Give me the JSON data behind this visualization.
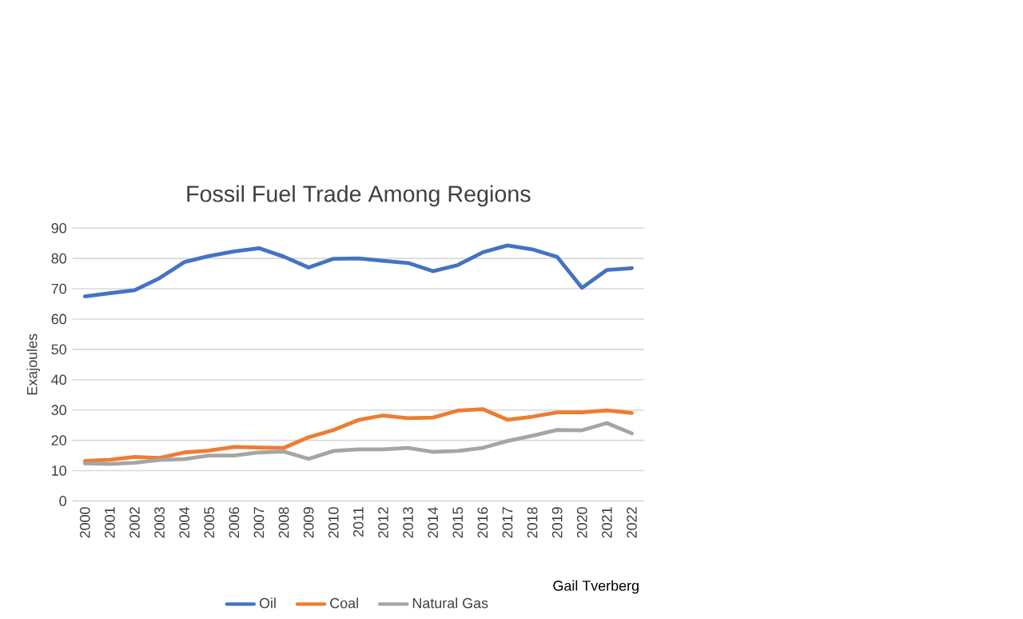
{
  "chart_data": {
    "type": "line",
    "title": "Fossil Fuel Trade Among Regions",
    "ylabel": "Exajoules",
    "categories": [
      "2000",
      "2001",
      "2002",
      "2003",
      "2004",
      "2005",
      "2006",
      "2007",
      "2008",
      "2009",
      "2010",
      "2011",
      "2012",
      "2013",
      "2014",
      "2015",
      "2016",
      "2017",
      "2018",
      "2019",
      "2020",
      "2021",
      "2022"
    ],
    "series": [
      {
        "name": "Oil",
        "color": "#4472c4",
        "values": [
          67.5,
          68.5,
          69.5,
          73.5,
          78.8,
          80.8,
          82.3,
          83.4,
          80.6,
          77,
          79.9,
          80,
          79.2,
          78.5,
          75.8,
          77.8,
          82,
          84.3,
          83,
          80.5,
          70.3,
          76.2,
          76.8
        ]
      },
      {
        "name": "Coal",
        "color": "#ed7d31",
        "values": [
          13.2,
          13.6,
          14.5,
          14.2,
          16,
          16.6,
          17.8,
          17.6,
          17.5,
          21,
          23.4,
          26.7,
          28.2,
          27.3,
          27.5,
          29.8,
          30.3,
          26.8,
          27.8,
          29.2,
          29.2,
          29.9,
          29
        ]
      },
      {
        "name": "Natural Gas",
        "color": "#a5a5a5",
        "values": [
          12.4,
          12.2,
          12.6,
          13.5,
          13.8,
          15,
          15,
          16,
          16.3,
          13.9,
          16.5,
          17,
          17,
          17.5,
          16.2,
          16.5,
          17.5,
          19.8,
          21.5,
          23.4,
          23.3,
          25.7,
          22.3
        ]
      }
    ],
    "ylim": [
      0,
      90
    ],
    "yticks": [
      0,
      10,
      20,
      30,
      40,
      50,
      60,
      70,
      80,
      90
    ],
    "grid": "y",
    "legend": "bottom",
    "marker": "none",
    "line_style": "solid",
    "annotations": [
      "Gail Tverberg"
    ]
  }
}
